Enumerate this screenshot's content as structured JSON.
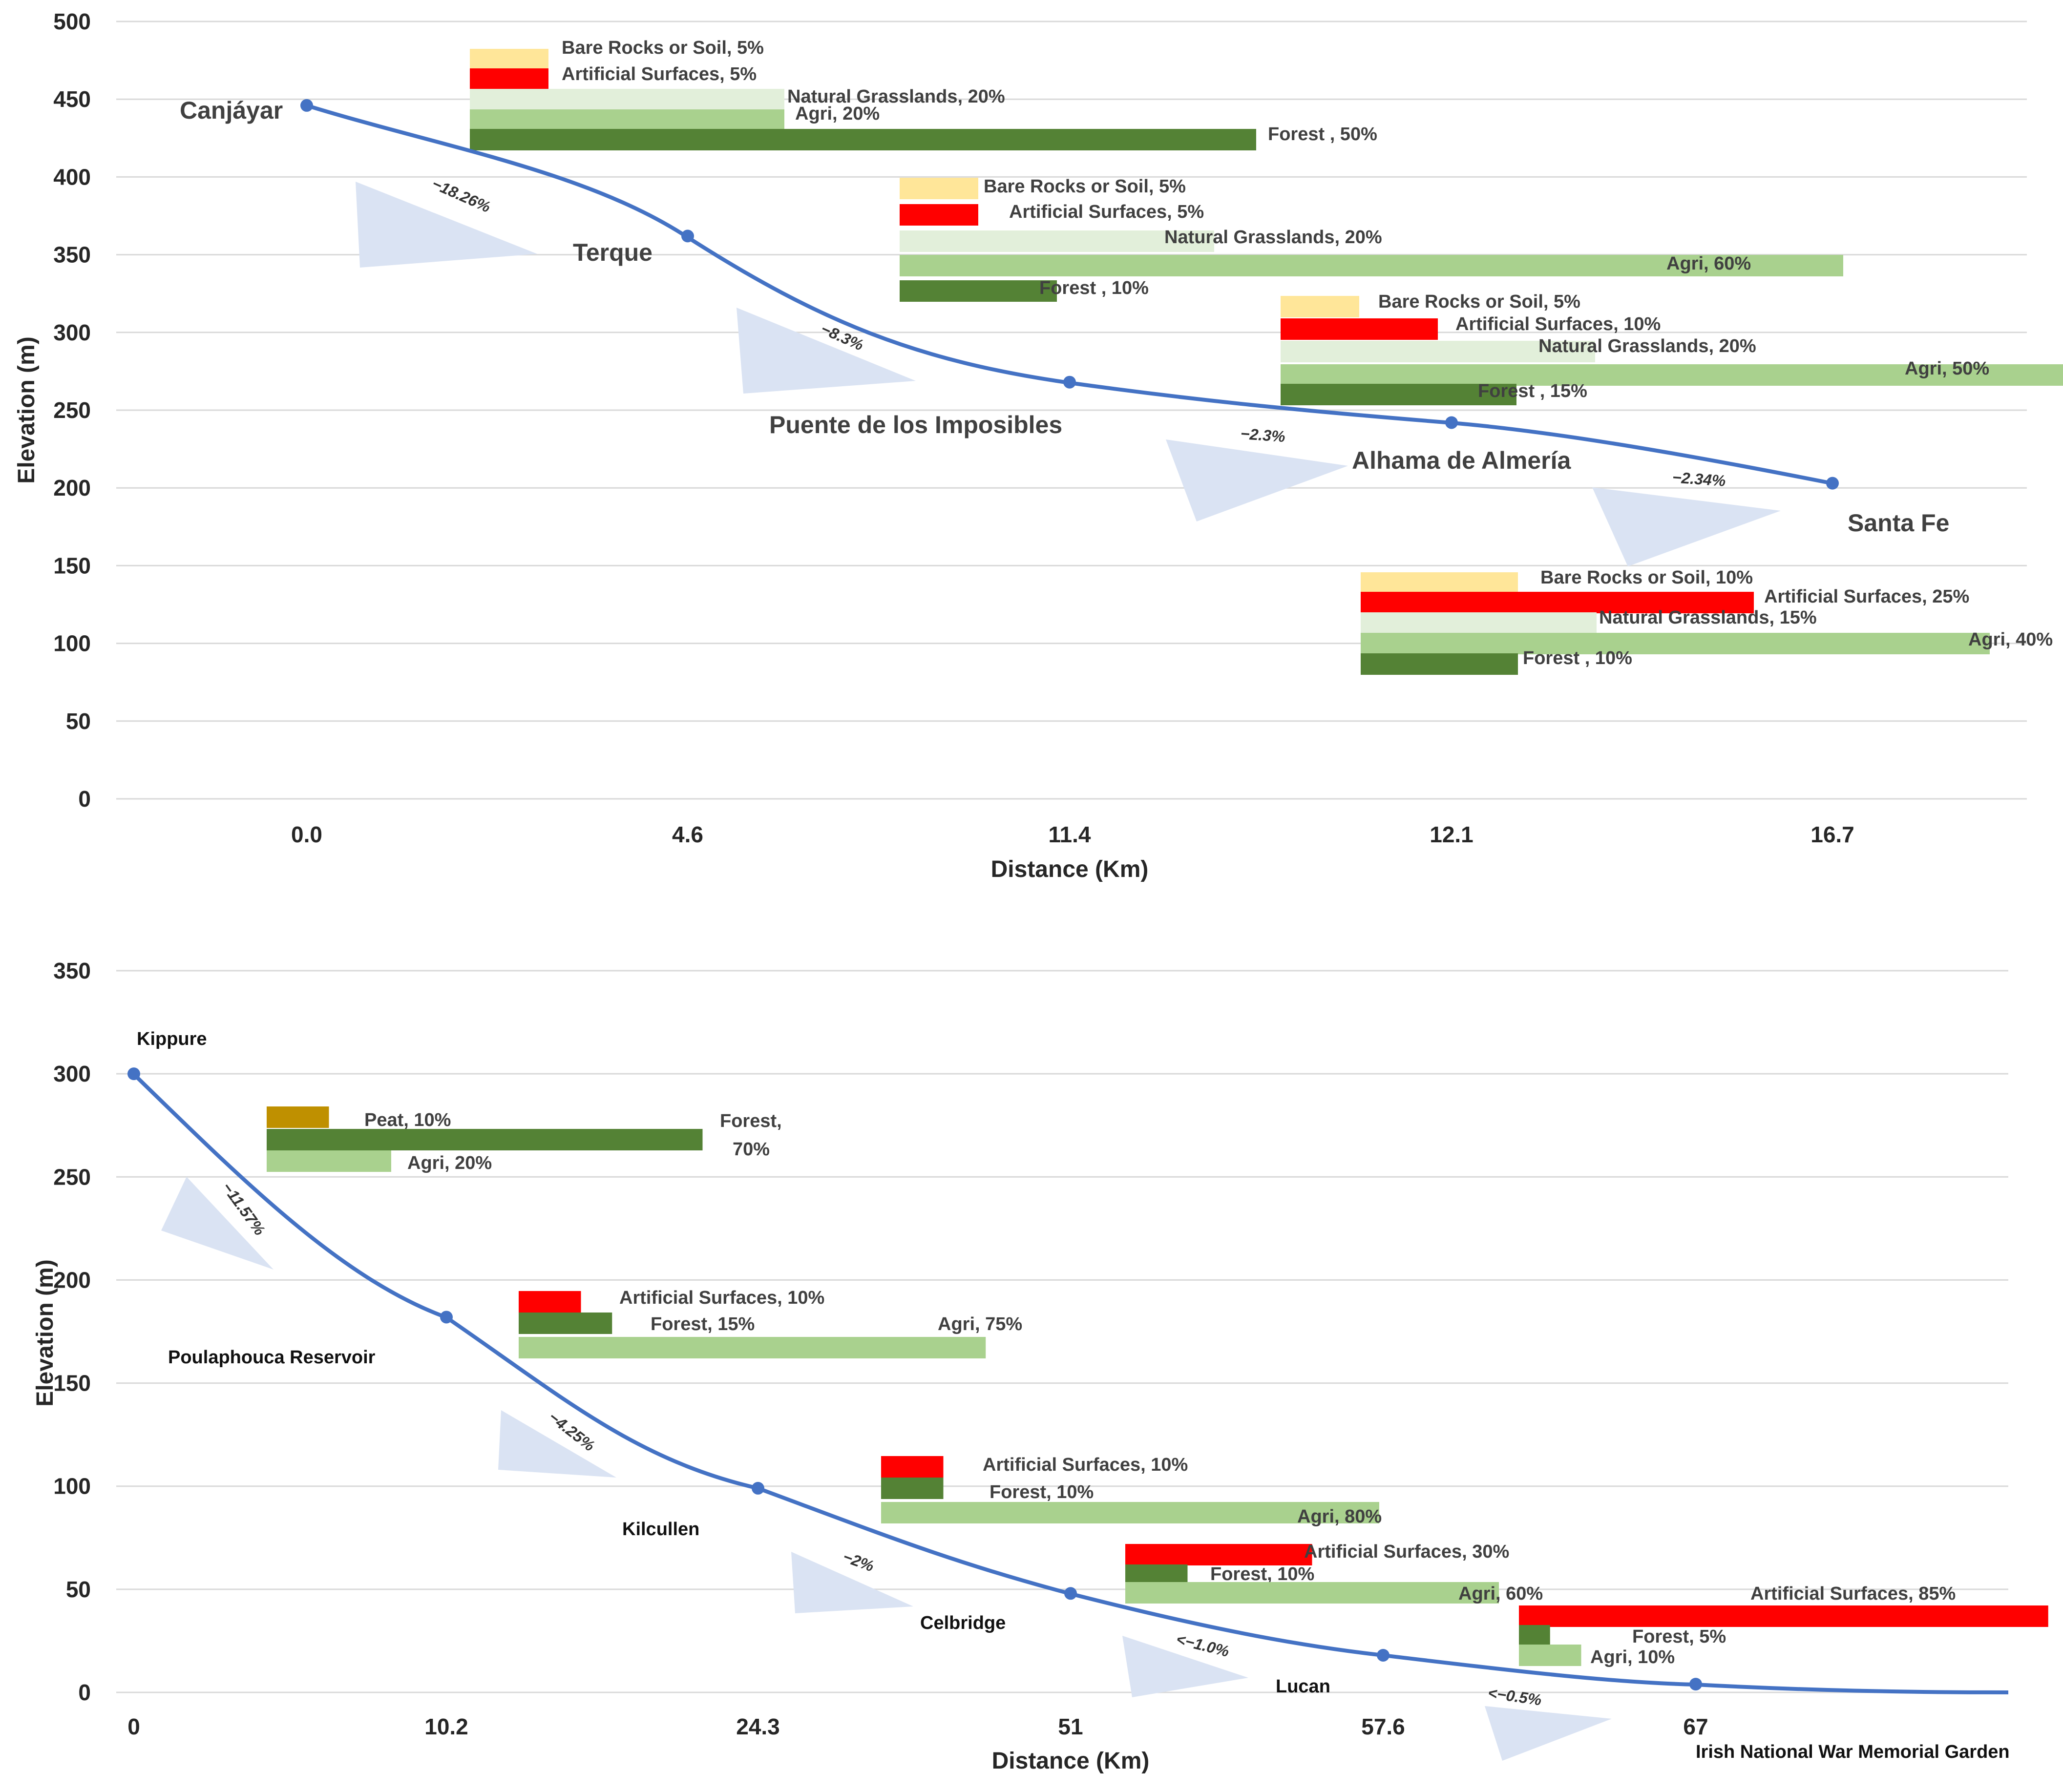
{
  "colors": {
    "curve": "#4472c4",
    "grid": "#d9d9d9",
    "arrow": "#dae3f3",
    "Bare Rocks or Soil": "#ffe699",
    "Artificial Surfaces": "#ff0000",
    "Natural Grasslands": "#e2efda",
    "Agri": "#a9d18e",
    "Forest": "#548235",
    "Peat": "#bf9000"
  },
  "chart_data": [
    {
      "type": "line",
      "title": "",
      "xlabel": "Distance (Km)",
      "ylabel": "Elevation (m)",
      "ylim": [
        0,
        500
      ],
      "yticks": [
        "0",
        "50",
        "100",
        "150",
        "200",
        "250",
        "300",
        "350",
        "400",
        "450",
        "500"
      ],
      "categories": [
        "0.0",
        "4.6",
        "11.4",
        "12.1",
        "16.7"
      ],
      "series": [
        {
          "name": "Elevation profile",
          "values": [
            446,
            362,
            268,
            242,
            203
          ]
        }
      ],
      "sites": [
        "Canjáyar",
        "Terque",
        "Puente de los Imposibles",
        "Alhama de Almería",
        "Santa Fe"
      ],
      "slopes": [
        "−18.26%",
        "−8.3%",
        "−2.3%",
        "−2.34%"
      ],
      "land_cover": [
        {
          "bars": [
            {
              "class": "Bare Rocks or Soil",
              "value": 5,
              "label": "Bare Rocks or Soil, 5%"
            },
            {
              "class": "Artificial Surfaces",
              "value": 5,
              "label": "Artificial Surfaces, 5%"
            },
            {
              "class": "Natural Grasslands",
              "value": 20,
              "label": "Natural Grasslands, 20%"
            },
            {
              "class": "Agri",
              "value": 20,
              "label": "Agri, 20%"
            },
            {
              "class": "Forest",
              "value": 50,
              "label": "Forest , 50%"
            }
          ]
        },
        {
          "bars": [
            {
              "class": "Bare Rocks or Soil",
              "value": 5,
              "label": "Bare Rocks or Soil, 5%"
            },
            {
              "class": "Artificial Surfaces",
              "value": 5,
              "label": "Artificial Surfaces, 5%"
            },
            {
              "class": "Natural Grasslands",
              "value": 20,
              "label": "Natural Grasslands, 20%"
            },
            {
              "class": "Agri",
              "value": 60,
              "label": "Agri, 60%"
            },
            {
              "class": "Forest",
              "value": 10,
              "label": "Forest , 10%"
            }
          ]
        },
        {
          "bars": [
            {
              "class": "Bare Rocks or Soil",
              "value": 5,
              "label": "Bare Rocks or Soil, 5%"
            },
            {
              "class": "Artificial Surfaces",
              "value": 10,
              "label": "Artificial Surfaces, 10%"
            },
            {
              "class": "Natural Grasslands",
              "value": 20,
              "label": "Natural Grasslands, 20%"
            },
            {
              "class": "Agri",
              "value": 50,
              "label": "Agri, 50%"
            },
            {
              "class": "Forest",
              "value": 15,
              "label": "Forest , 15%"
            }
          ]
        },
        {
          "bars": [
            {
              "class": "Bare Rocks or Soil",
              "value": 10,
              "label": "Bare Rocks or Soil, 10%"
            },
            {
              "class": "Artificial Surfaces",
              "value": 25,
              "label": "Artificial Surfaces, 25%"
            },
            {
              "class": "Natural Grasslands",
              "value": 15,
              "label": "Natural Grasslands, 15%"
            },
            {
              "class": "Agri",
              "value": 40,
              "label": "Agri, 40%"
            },
            {
              "class": "Forest",
              "value": 10,
              "label": "Forest , 10%"
            }
          ]
        }
      ]
    },
    {
      "type": "line",
      "title": "",
      "xlabel": "Distance (Km)",
      "ylabel": "Elevation (m)",
      "ylim": [
        0,
        350
      ],
      "yticks": [
        "0",
        "50",
        "100",
        "150",
        "200",
        "250",
        "300",
        "350"
      ],
      "categories": [
        "0",
        "10.2",
        "24.3",
        "51",
        "57.6",
        "67"
      ],
      "series": [
        {
          "name": "Elevation profile",
          "values": [
            300,
            182,
            99,
            48,
            18,
            4
          ]
        }
      ],
      "sites": [
        "Kippure",
        "Poulaphouca Reservoir",
        "Kilcullen",
        "Celbridge",
        "Lucan",
        "Irish National War Memorial Garden"
      ],
      "slopes": [
        "−11.57%",
        "−4.25%",
        "−2%",
        "<−1.0%",
        "<−0.5%"
      ],
      "land_cover": [
        {
          "bars": [
            {
              "class": "Peat",
              "value": 10,
              "label": "Peat, 10%"
            },
            {
              "class": "Forest",
              "value": 70,
              "label": "Forest,",
              "label2": "70%"
            },
            {
              "class": "Agri",
              "value": 20,
              "label": "Agri, 20%"
            }
          ]
        },
        {
          "bars": [
            {
              "class": "Artificial Surfaces",
              "value": 10,
              "label": "Artificial Surfaces, 10%"
            },
            {
              "class": "Forest",
              "value": 15,
              "label": "Forest, 15%"
            },
            {
              "class": "Agri",
              "value": 75,
              "label": "Agri, 75%"
            }
          ]
        },
        {
          "bars": [
            {
              "class": "Artificial Surfaces",
              "value": 10,
              "label": "Artificial Surfaces, 10%"
            },
            {
              "class": "Forest",
              "value": 10,
              "label": "Forest, 10%"
            },
            {
              "class": "Agri",
              "value": 80,
              "label": "Agri, 80%"
            }
          ]
        },
        {
          "bars": [
            {
              "class": "Artificial Surfaces",
              "value": 30,
              "label": "Artificial Surfaces, 30%"
            },
            {
              "class": "Forest",
              "value": 10,
              "label": "Forest, 10%"
            },
            {
              "class": "Agri",
              "value": 60,
              "label": "Agri, 60%"
            }
          ]
        },
        {
          "bars": [
            {
              "class": "Artificial Surfaces",
              "value": 85,
              "label": "Artificial Surfaces, 85%"
            },
            {
              "class": "Forest",
              "value": 5,
              "label": "Forest, 5%"
            },
            {
              "class": "Agri",
              "value": 10,
              "label": "Agri, 10%"
            }
          ]
        }
      ]
    }
  ]
}
